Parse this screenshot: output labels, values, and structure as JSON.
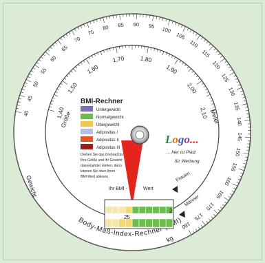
{
  "title": "BMI-Rechner",
  "legend": [
    {
      "label": "Untergewicht",
      "color": "#7f6fb2"
    },
    {
      "label": "Normalgewicht",
      "color": "#6bbb4f"
    },
    {
      "label": "Übergewicht",
      "color": "#f3c54a"
    },
    {
      "label": "Adipositas I",
      "color": "#b8bfe4"
    },
    {
      "label": "Adipositas II",
      "color": "#e1562a"
    },
    {
      "label": "Adipositas III",
      "color": "#9b1e1e"
    }
  ],
  "instructions": [
    "Drehen Sie das Drehrad bis",
    "Ihre Größe und Ihr Gewicht",
    "übereinander stehen, dann",
    "können Sie oben Ihren",
    "BMI-Wert ablesen."
  ],
  "logo": {
    "text": "Logo...",
    "line1": "... hier ist Platz",
    "line2": "für Werbung"
  },
  "outer_labels": {
    "weight": "Gewicht",
    "kg": "kg",
    "size": "Größe",
    "meter": "Meter"
  },
  "brand_arc": "Body-Maß-Index-Rechner (BMI)",
  "pointer": {
    "left": "Ihr BMI -",
    "right": "Wert"
  },
  "gender": {
    "women": "Frauen",
    "men": "Männer"
  },
  "window_values": {
    "top_right": "2",
    "mid": "25"
  },
  "weight_ticks": [
    "40",
    "45",
    "50",
    "55",
    "60",
    "65",
    "70",
    "75",
    "80",
    "85",
    "90",
    "95",
    "100",
    "105",
    "110",
    "115",
    "120",
    "125",
    "130",
    "135",
    "140",
    "145",
    "150",
    "155",
    "160",
    "165",
    "170",
    "175",
    "180"
  ],
  "height_ticks": [
    "1,40",
    "1,50",
    "1,60",
    "1,70",
    "1,80",
    "1,90",
    "2,00",
    "2,10"
  ]
}
